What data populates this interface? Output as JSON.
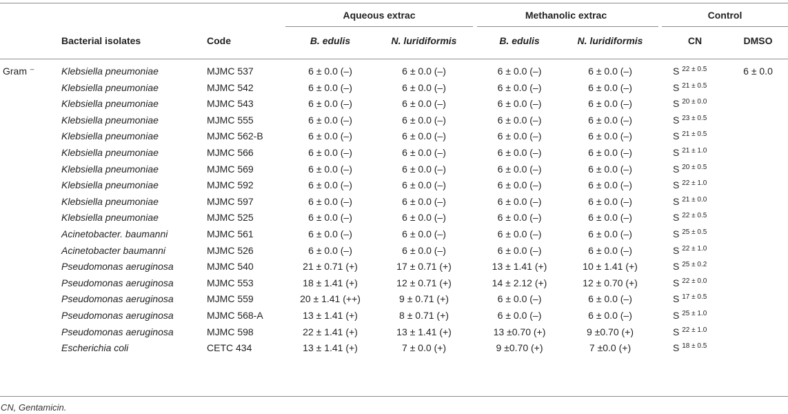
{
  "header": {
    "group_aqueous": "Aqueous extrac",
    "group_methanolic": "Methanolic extrac",
    "group_control": "Control",
    "col_isolates": "Bacterial isolates",
    "col_code": "Code",
    "col_aq_b": "B. edulis",
    "col_aq_n": "N. luridiformis",
    "col_me_b": "B. edulis",
    "col_me_n": "N. luridiformis",
    "col_cn": "CN",
    "col_dmso": "DMSO"
  },
  "gram_label": "Gram ⁻",
  "dmso_value": "6 ± 0.0",
  "rows": [
    {
      "isolate": "Klebsiella pneumoniae",
      "code": "MJMC 537",
      "aq_b": "6 ± 0.0 (–)",
      "aq_n": "6 ± 0.0 (–)",
      "me_b": "6 ± 0.0 (–)",
      "me_n": "6 ± 0.0 (–)",
      "cn_s": "S",
      "cn_sup": "22 ± 0.5"
    },
    {
      "isolate": "Klebsiella pneumoniae",
      "code": "MJMC 542",
      "aq_b": "6 ± 0.0 (–)",
      "aq_n": "6 ± 0.0 (–)",
      "me_b": "6 ± 0.0 (–)",
      "me_n": "6 ± 0.0 (–)",
      "cn_s": "S",
      "cn_sup": "21 ± 0.5"
    },
    {
      "isolate": "Klebsiella pneumoniae",
      "code": "MJMC 543",
      "aq_b": "6 ± 0.0 (–)",
      "aq_n": "6 ± 0.0 (–)",
      "me_b": "6 ± 0.0 (–)",
      "me_n": "6 ± 0.0 (–)",
      "cn_s": "S",
      "cn_sup": "20 ± 0.0"
    },
    {
      "isolate": "Klebsiella pneumoniae",
      "code": "MJMC 555",
      "aq_b": "6 ± 0.0 (–)",
      "aq_n": "6 ± 0.0 (–)",
      "me_b": "6 ± 0.0 (–)",
      "me_n": "6 ± 0.0 (–)",
      "cn_s": "S",
      "cn_sup": "23 ± 0.5"
    },
    {
      "isolate": "Klebsiella pneumoniae",
      "code": "MJMC 562-B",
      "aq_b": "6 ± 0.0 (–)",
      "aq_n": "6 ± 0.0 (–)",
      "me_b": "6 ± 0.0 (–)",
      "me_n": "6 ± 0.0 (–)",
      "cn_s": "S",
      "cn_sup": "21 ± 0.5"
    },
    {
      "isolate": "Klebsiella pneumoniae",
      "code": "MJMC 566",
      "aq_b": "6 ± 0.0 (–)",
      "aq_n": "6 ± 0.0 (–)",
      "me_b": "6 ± 0.0 (–)",
      "me_n": "6 ± 0.0 (–)",
      "cn_s": "S",
      "cn_sup": "21 ± 1.0"
    },
    {
      "isolate": "Klebsiella pneumoniae",
      "code": "MJMC 569",
      "aq_b": "6 ± 0.0 (–)",
      "aq_n": "6 ± 0.0 (–)",
      "me_b": "6 ± 0.0 (–)",
      "me_n": "6 ± 0.0 (–)",
      "cn_s": "S",
      "cn_sup": "20 ± 0.5"
    },
    {
      "isolate": "Klebsiella pneumoniae",
      "code": "MJMC 592",
      "aq_b": "6 ± 0.0 (–)",
      "aq_n": "6 ± 0.0 (–)",
      "me_b": "6 ± 0.0 (–)",
      "me_n": "6 ± 0.0 (–)",
      "cn_s": "S",
      "cn_sup": "22 ± 1.0"
    },
    {
      "isolate": "Klebsiella pneumoniae",
      "code": "MJMC 597",
      "aq_b": "6 ± 0.0 (–)",
      "aq_n": "6 ± 0.0 (–)",
      "me_b": "6 ± 0.0 (–)",
      "me_n": "6 ± 0.0 (–)",
      "cn_s": "S",
      "cn_sup": "21 ± 0.0"
    },
    {
      "isolate": "Klebsiella pneumoniae",
      "code": "MJMC 525",
      "aq_b": "6 ± 0.0 (–)",
      "aq_n": "6 ± 0.0 (–)",
      "me_b": "6 ± 0.0 (–)",
      "me_n": "6 ± 0.0 (–)",
      "cn_s": "S",
      "cn_sup": "22 ± 0.5"
    },
    {
      "isolate": "Acinetobacter. baumanni",
      "code": "MJMC 561",
      "aq_b": "6 ± 0.0 (–)",
      "aq_n": "6 ± 0.0 (–)",
      "me_b": "6 ± 0.0 (–)",
      "me_n": "6 ± 0.0 (–)",
      "cn_s": "S",
      "cn_sup": "25 ± 0.5"
    },
    {
      "isolate": "Acinetobacter baumanni",
      "code": "MJMC 526",
      "aq_b": "6 ± 0.0 (–)",
      "aq_n": "6 ± 0.0 (–)",
      "me_b": "6 ± 0.0 (–)",
      "me_n": "6 ± 0.0 (–)",
      "cn_s": "S",
      "cn_sup": "22 ± 1.0"
    },
    {
      "isolate": "Pseudomonas aeruginosa",
      "code": "MJMC 540",
      "aq_b": "21 ± 0.71 (+)",
      "aq_n": "17 ± 0.71 (+)",
      "me_b": "13 ± 1.41 (+)",
      "me_n": "10 ± 1.41 (+)",
      "cn_s": "S",
      "cn_sup": "25 ± 0.2"
    },
    {
      "isolate": "Pseudomonas aeruginosa",
      "code": "MJMC 553",
      "aq_b": "18 ± 1.41 (+)",
      "aq_n": "12 ± 0.71 (+)",
      "me_b": "14 ± 2.12 (+)",
      "me_n": "12 ± 0.70 (+)",
      "cn_s": "S",
      "cn_sup": "22 ± 0.0"
    },
    {
      "isolate": "Pseudomonas aeruginosa",
      "code": "MJMC 559",
      "aq_b": "20 ± 1.41 (++)",
      "aq_n": "9 ± 0.71 (+)",
      "me_b": "6 ± 0.0 (–)",
      "me_n": "6 ± 0.0 (–)",
      "cn_s": "S",
      "cn_sup": "17 ± 0.5"
    },
    {
      "isolate": "Pseudomonas aeruginosa",
      "code": "MJMC 568-A",
      "aq_b": "13 ± 1.41 (+)",
      "aq_n": "8 ± 0.71 (+)",
      "me_b": "6 ± 0.0 (–)",
      "me_n": "6 ± 0.0 (–)",
      "cn_s": "S",
      "cn_sup": "25 ± 1.0"
    },
    {
      "isolate": "Pseudomonas aeruginosa",
      "code": "MJMC 598",
      "aq_b": "22 ± 1.41 (+)",
      "aq_n": "13 ± 1.41 (+)",
      "me_b": "13 ±0.70 (+)",
      "me_n": "9 ±0.70 (+)",
      "cn_s": "S",
      "cn_sup": "22 ± 1.0"
    },
    {
      "isolate": "Escherichia coli",
      "code": "CETC 434",
      "aq_b": "13 ± 1.41 (+)",
      "aq_n": "7 ± 0.0 (+)",
      "me_b": "9 ±0.70 (+)",
      "me_n": "7 ±0.0 (+)",
      "cn_s": "S",
      "cn_sup": "18 ± 0.5"
    }
  ],
  "footnote": "CN, Gentamicin."
}
